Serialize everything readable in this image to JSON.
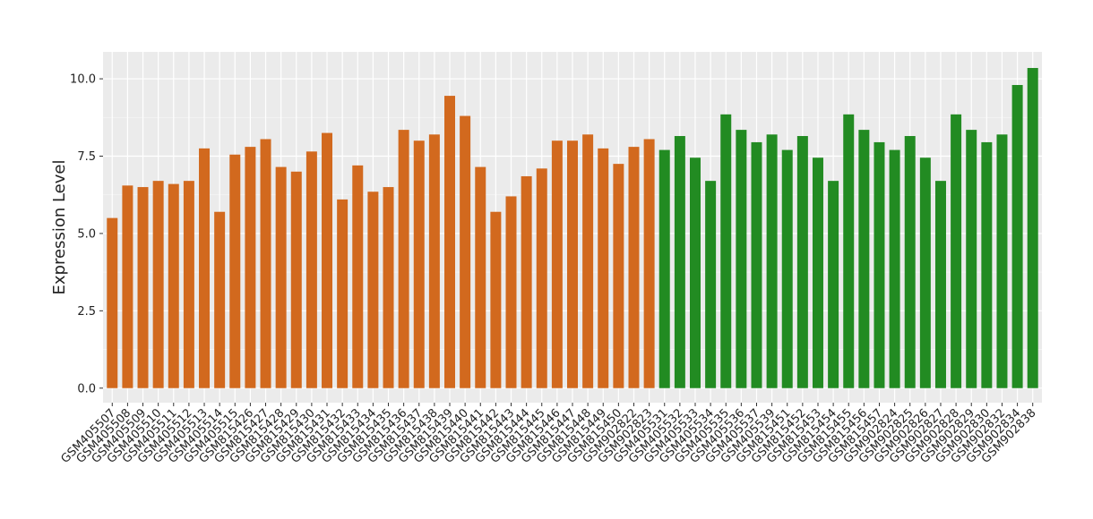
{
  "chart_data": {
    "type": "bar",
    "y_label": "Expression Level",
    "categories": [
      "GSM405507",
      "GSM405508",
      "GSM405509",
      "GSM405510",
      "GSM405511",
      "GSM405512",
      "GSM405513",
      "GSM405514",
      "GSM405515",
      "GSM815426",
      "GSM815427",
      "GSM815428",
      "GSM815429",
      "GSM815430",
      "GSM815431",
      "GSM815432",
      "GSM815433",
      "GSM815434",
      "GSM815435",
      "GSM815436",
      "GSM815437",
      "GSM815438",
      "GSM815439",
      "GSM815440",
      "GSM815441",
      "GSM815442",
      "GSM815443",
      "GSM815444",
      "GSM815445",
      "GSM815446",
      "GSM815447",
      "GSM815448",
      "GSM815449",
      "GSM815450",
      "GSM902822",
      "GSM902823",
      "GSM405531",
      "GSM405532",
      "GSM405533",
      "GSM405534",
      "GSM405535",
      "GSM405536",
      "GSM405537",
      "GSM405539",
      "GSM815451",
      "GSM815452",
      "GSM815453",
      "GSM815454",
      "GSM815455",
      "GSM815456",
      "GSM815457",
      "GSM902824",
      "GSM902825",
      "GSM902826",
      "GSM902827",
      "GSM902828",
      "GSM902829",
      "GSM902830",
      "GSM902832",
      "GSM902834",
      "GSM902838"
    ],
    "values": [
      5.5,
      6.55,
      6.5,
      6.7,
      6.6,
      6.7,
      7.75,
      5.7,
      7.55,
      7.8,
      8.05,
      7.15,
      7.0,
      7.65,
      8.25,
      6.1,
      7.2,
      6.35,
      6.5,
      8.35,
      8.0,
      8.2,
      9.45,
      8.8,
      7.15,
      5.7,
      6.2,
      6.85,
      7.1,
      8.0,
      8.0,
      8.2,
      7.75,
      7.25,
      7.8,
      8.05,
      7.7,
      8.15,
      7.45,
      6.7,
      8.85,
      8.35,
      7.95,
      8.2,
      7.7,
      8.15,
      7.45,
      6.7,
      8.85,
      8.35,
      7.95,
      7.7,
      8.15,
      7.45,
      6.7,
      8.85,
      8.35,
      7.95,
      8.2,
      9.8,
      10.35
    ],
    "colors": [
      "#d2691e",
      "#d2691e",
      "#d2691e",
      "#d2691e",
      "#d2691e",
      "#d2691e",
      "#d2691e",
      "#d2691e",
      "#d2691e",
      "#d2691e",
      "#d2691e",
      "#d2691e",
      "#d2691e",
      "#d2691e",
      "#d2691e",
      "#d2691e",
      "#d2691e",
      "#d2691e",
      "#d2691e",
      "#d2691e",
      "#d2691e",
      "#d2691e",
      "#d2691e",
      "#d2691e",
      "#d2691e",
      "#d2691e",
      "#d2691e",
      "#d2691e",
      "#d2691e",
      "#d2691e",
      "#d2691e",
      "#d2691e",
      "#d2691e",
      "#d2691e",
      "#d2691e",
      "#d2691e",
      "#228b22",
      "#228b22",
      "#228b22",
      "#228b22",
      "#228b22",
      "#228b22",
      "#228b22",
      "#228b22",
      "#228b22",
      "#228b22",
      "#228b22",
      "#228b22",
      "#228b22",
      "#228b22",
      "#228b22",
      "#228b22",
      "#228b22",
      "#228b22",
      "#228b22",
      "#228b22",
      "#228b22",
      "#228b22",
      "#228b22",
      "#228b22",
      "#228b22"
    ],
    "ylim": [
      -0.47,
      10.87
    ],
    "yticks": [
      {
        "value": 0,
        "label": "0.0"
      },
      2.5,
      {
        "value": 5,
        "label": "5.0"
      },
      7.5,
      {
        "value": 10,
        "label": "10.0"
      }
    ],
    "grid": true
  }
}
